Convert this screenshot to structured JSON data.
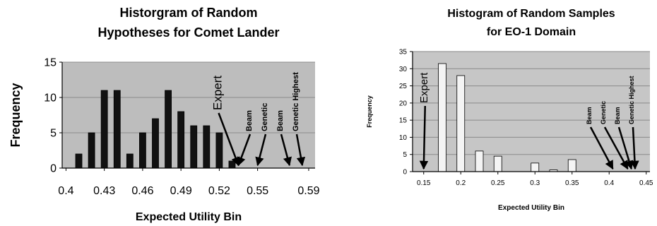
{
  "chart_data": [
    {
      "type": "bar",
      "title_lines": [
        "Historgram of Random",
        "Hypotheses for Comet Lander"
      ],
      "xlabel": "Expected Utility Bin",
      "ylabel": "Frequency",
      "x_ticks": [
        "0.4",
        "0.43",
        "0.46",
        "0.49",
        "0.52",
        "0.55",
        "0.59"
      ],
      "y_ticks": [
        "0",
        "5",
        "10",
        "15"
      ],
      "ylim": [
        0,
        15
      ],
      "x": [
        0.41,
        0.42,
        0.43,
        0.44,
        0.45,
        0.46,
        0.47,
        0.48,
        0.49,
        0.5,
        0.51,
        0.52,
        0.53
      ],
      "values": [
        2,
        5,
        11,
        11,
        2,
        5,
        7,
        11,
        8,
        6,
        6,
        5,
        1
      ],
      "grid": true,
      "colors": {
        "plot_bg": "#bdbdbd",
        "bar": "#111111",
        "arrow": "#000000"
      },
      "annotations": [
        {
          "label": "Expert",
          "x": 0.535
        },
        {
          "label": "Beam",
          "x": 0.535
        },
        {
          "label": "Genetic",
          "x": 0.55
        },
        {
          "label": "Beam",
          "x": 0.575
        },
        {
          "label": "Genetic Highest",
          "x": 0.585
        }
      ]
    },
    {
      "type": "bar",
      "title_lines": [
        "Histogram of Random Samples",
        "for EO-1 Domain"
      ],
      "xlabel": "Expected Utility Bin",
      "ylabel": "Frequency",
      "x_ticks": [
        "0.15",
        "0.2",
        "0.25",
        "0.3",
        "0.35",
        "0.4",
        "0.45"
      ],
      "y_ticks": [
        "0",
        "5",
        "10",
        "15",
        "20",
        "25",
        "30",
        "35"
      ],
      "ylim": [
        0,
        35
      ],
      "x": [
        0.175,
        0.2,
        0.225,
        0.25,
        0.275,
        0.3,
        0.325,
        0.35
      ],
      "values": [
        31.5,
        28,
        6,
        4.5,
        0,
        2.5,
        0.5,
        3.5
      ],
      "grid": true,
      "colors": {
        "plot_bg": "#c6c6c6",
        "bar": "#f4f4f4",
        "arrow": "#000000"
      },
      "annotations": [
        {
          "label": "Expert",
          "x": 0.15
        },
        {
          "label": "Beam",
          "x": 0.405
        },
        {
          "label": "Genetic",
          "x": 0.425
        },
        {
          "label": "Beam",
          "x": 0.43
        },
        {
          "label": "Genetic Highest",
          "x": 0.435
        }
      ]
    }
  ]
}
